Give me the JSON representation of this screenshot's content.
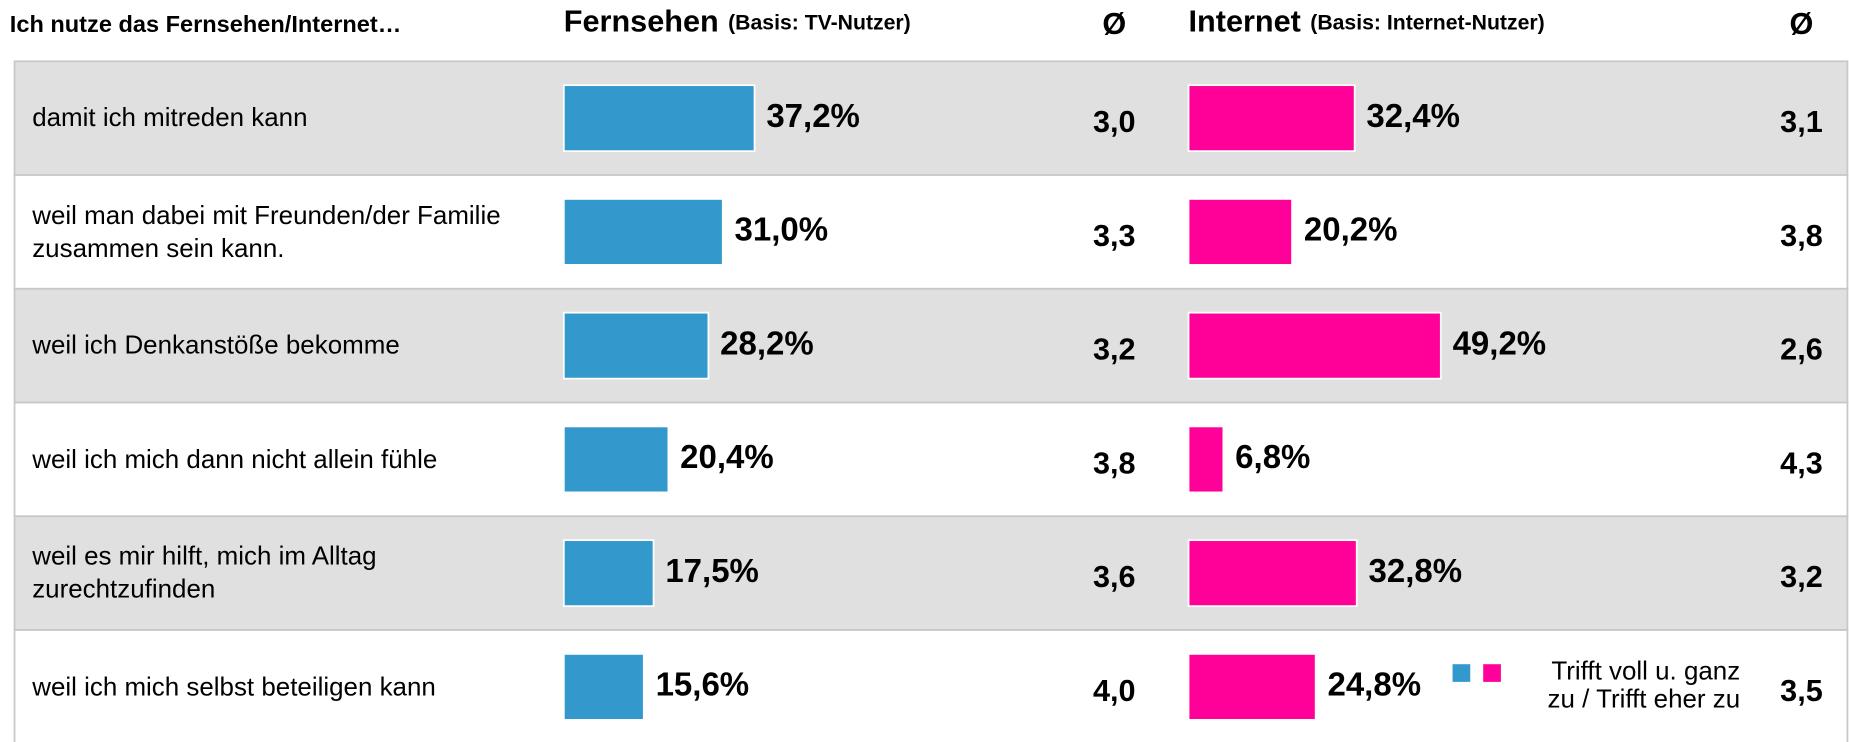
{
  "chart_data": {
    "type": "bar",
    "title": "Ich nutze das Fernsehen/Internet…",
    "avg_header": "Ø",
    "legend_label": [
      "Trifft voll u. ganz",
      "zu / Trifft eher zu"
    ],
    "categories": [
      "damit ich mitreden kann",
      "weil man dabei mit Freunden/der Familie zusammen sein kann.",
      "weil ich Denkanstöße bekomme",
      "weil ich mich dann nicht allein fühle",
      "weil es mir hilft, mich im Alltag zurechtzufinden",
      "weil ich mich selbst beteiligen kann"
    ],
    "series": [
      {
        "name": "Fernsehen",
        "subtitle": "(Basis: TV-Nutzer)",
        "color": "#3399cc",
        "values": [
          37.2,
          31.0,
          28.2,
          20.4,
          17.5,
          15.6
        ],
        "value_labels": [
          "37,2%",
          "31,0%",
          "28,2%",
          "20,4%",
          "17,5%",
          "15,6%"
        ],
        "averages": [
          3.0,
          3.3,
          3.2,
          3.8,
          3.6,
          4.0
        ],
        "average_labels": [
          "3,0",
          "3,3",
          "3,2",
          "3,8",
          "3,6",
          "4,0"
        ]
      },
      {
        "name": "Internet",
        "subtitle": "(Basis: Internet-Nutzer)",
        "color": "#ff0099",
        "values": [
          32.4,
          20.2,
          49.2,
          6.8,
          32.8,
          24.8
        ],
        "value_labels": [
          "32,4%",
          "20,2%",
          "49,2%",
          "6,8%",
          "32,8%",
          "24,8%"
        ],
        "averages": [
          3.1,
          3.8,
          2.6,
          4.3,
          3.2,
          3.5
        ],
        "average_labels": [
          "3,1",
          "3,8",
          "2,6",
          "4,3",
          "3,2",
          "3,5"
        ]
      }
    ]
  }
}
